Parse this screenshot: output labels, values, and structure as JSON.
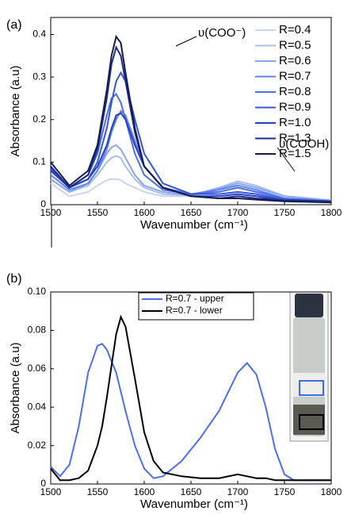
{
  "chart_data": [
    {
      "type": "line",
      "panel_label": "(a)",
      "x_label": "Wavenumber (cm⁻¹)",
      "y_label": "Absorbance (a.u)",
      "annotations": [
        "υ(COO⁻)",
        "υ(COOH)"
      ],
      "x": [
        1500,
        1520,
        1540,
        1550,
        1560,
        1565,
        1570,
        1575,
        1580,
        1590,
        1600,
        1620,
        1650,
        1680,
        1700,
        1720,
        1750,
        1800
      ],
      "xlim": [
        1500,
        1800
      ],
      "xticks": [
        1500,
        1550,
        1600,
        1650,
        1700,
        1750,
        1800
      ],
      "ylim": [
        0,
        0.44
      ],
      "yticks": [
        0,
        0.1,
        0.2,
        0.3,
        0.4
      ],
      "legend": "upper right",
      "legend_frame": false,
      "series": [
        {
          "name": "R=0.4",
          "color": "#c9d6f2",
          "values": [
            0.05,
            0.02,
            0.03,
            0.045,
            0.058,
            0.06,
            0.06,
            0.058,
            0.05,
            0.04,
            0.03,
            0.02,
            0.02,
            0.035,
            0.05,
            0.04,
            0.02,
            0.01
          ]
        },
        {
          "name": "R=0.5",
          "color": "#a9bdf0",
          "values": [
            0.06,
            0.03,
            0.045,
            0.07,
            0.1,
            0.11,
            0.115,
            0.11,
            0.09,
            0.06,
            0.04,
            0.025,
            0.022,
            0.04,
            0.055,
            0.045,
            0.02,
            0.01
          ]
        },
        {
          "name": "R=0.6",
          "color": "#8aa5ec",
          "values": [
            0.06,
            0.03,
            0.05,
            0.08,
            0.12,
            0.135,
            0.14,
            0.13,
            0.11,
            0.07,
            0.045,
            0.03,
            0.022,
            0.038,
            0.05,
            0.04,
            0.02,
            0.01
          ]
        },
        {
          "name": "R=0.7",
          "color": "#5e82ea",
          "values": [
            0.07,
            0.035,
            0.05,
            0.08,
            0.13,
            0.17,
            0.2,
            0.22,
            0.21,
            0.15,
            0.09,
            0.04,
            0.025,
            0.035,
            0.045,
            0.035,
            0.015,
            0.008
          ]
        },
        {
          "name": "R=0.8",
          "color": "#4a6ee6",
          "values": [
            0.08,
            0.04,
            0.07,
            0.12,
            0.21,
            0.25,
            0.26,
            0.24,
            0.2,
            0.12,
            0.07,
            0.035,
            0.025,
            0.03,
            0.04,
            0.03,
            0.015,
            0.008
          ]
        },
        {
          "name": "R=0.9",
          "color": "#3654dc",
          "values": [
            0.085,
            0.04,
            0.06,
            0.1,
            0.18,
            0.24,
            0.29,
            0.31,
            0.29,
            0.2,
            0.12,
            0.05,
            0.025,
            0.025,
            0.03,
            0.025,
            0.012,
            0.008
          ]
        },
        {
          "name": "R=1.0",
          "color": "#2a3fc4",
          "values": [
            0.08,
            0.04,
            0.06,
            0.09,
            0.14,
            0.18,
            0.21,
            0.215,
            0.2,
            0.14,
            0.09,
            0.04,
            0.02,
            0.02,
            0.025,
            0.02,
            0.01,
            0.008
          ]
        },
        {
          "name": "R=1.3",
          "color": "#1e2c8c",
          "values": [
            0.09,
            0.04,
            0.07,
            0.13,
            0.25,
            0.33,
            0.37,
            0.35,
            0.29,
            0.17,
            0.09,
            0.04,
            0.02,
            0.015,
            0.02,
            0.015,
            0.01,
            0.008
          ]
        },
        {
          "name": "R=1.5",
          "color": "#141c4a",
          "values": [
            0.1,
            0.045,
            0.08,
            0.14,
            0.27,
            0.35,
            0.395,
            0.38,
            0.31,
            0.18,
            0.09,
            0.04,
            0.02,
            0.015,
            0.015,
            0.012,
            0.008,
            0.005
          ]
        }
      ]
    },
    {
      "type": "line",
      "panel_label": "(b)",
      "x_label": "Wavenumber (cm⁻¹)",
      "y_label": "Absorbance (a.u)",
      "x": [
        1500,
        1510,
        1520,
        1530,
        1540,
        1550,
        1555,
        1560,
        1570,
        1575,
        1580,
        1590,
        1600,
        1610,
        1620,
        1640,
        1660,
        1680,
        1700,
        1710,
        1720,
        1730,
        1740,
        1750,
        1760,
        1780,
        1800
      ],
      "xlim": [
        1500,
        1800
      ],
      "xticks": [
        1500,
        1550,
        1600,
        1650,
        1700,
        1750,
        1800
      ],
      "ylim": [
        0,
        0.1
      ],
      "yticks": [
        0,
        0.02,
        0.04,
        0.06,
        0.08,
        {
          "value": 0.1,
          "label": "0.10"
        }
      ],
      "legend": "upper center",
      "legend_frame": true,
      "series": [
        {
          "name": "R=0.7 - upper",
          "color": "#4d6ef0",
          "values": [
            0.009,
            0.004,
            0.01,
            0.03,
            0.058,
            0.072,
            0.073,
            0.07,
            0.058,
            0.048,
            0.038,
            0.02,
            0.008,
            0.003,
            0.004,
            0.012,
            0.024,
            0.038,
            0.058,
            0.063,
            0.057,
            0.04,
            0.018,
            0.005,
            0.002,
            0.002,
            0.002
          ]
        },
        {
          "name": "R=0.7 - lower",
          "color": "#000000",
          "values": [
            0.008,
            0.002,
            0.002,
            0.003,
            0.007,
            0.02,
            0.03,
            0.045,
            0.078,
            0.087,
            0.082,
            0.055,
            0.027,
            0.012,
            0.006,
            0.004,
            0.003,
            0.003,
            0.005,
            0.004,
            0.003,
            0.003,
            0.002,
            0.002,
            0.002,
            0.002,
            0.002
          ]
        }
      ]
    }
  ]
}
